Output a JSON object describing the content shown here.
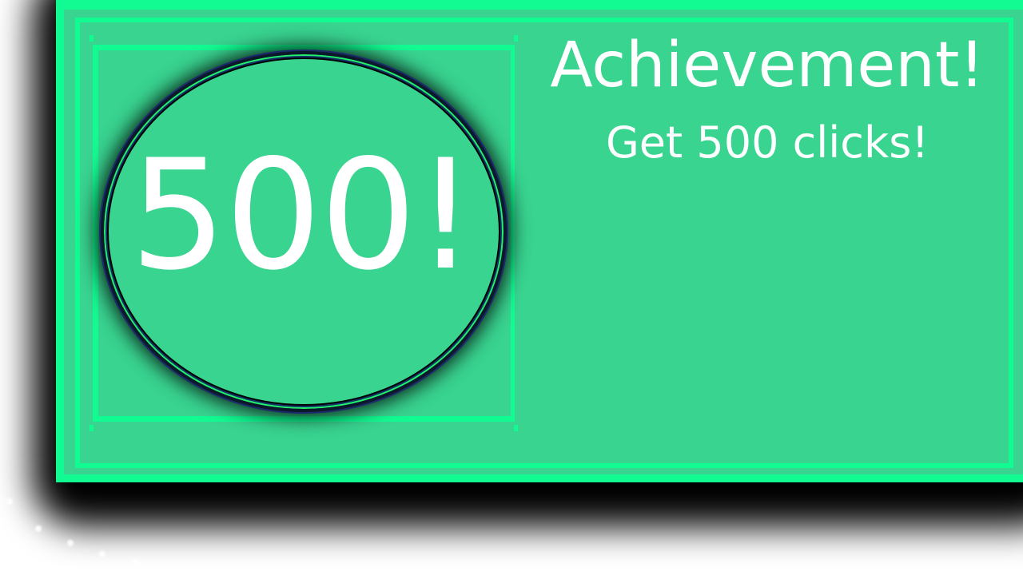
{
  "achievement": {
    "badge_label": "500!",
    "title": "Achievement!",
    "description": "Get 500 clicks!"
  },
  "colors": {
    "panel": "#39d490",
    "border": "#12fb92",
    "text": "#ffffff",
    "shadow": "#000000"
  },
  "icons": {
    "badge": "circle-medal-icon"
  }
}
